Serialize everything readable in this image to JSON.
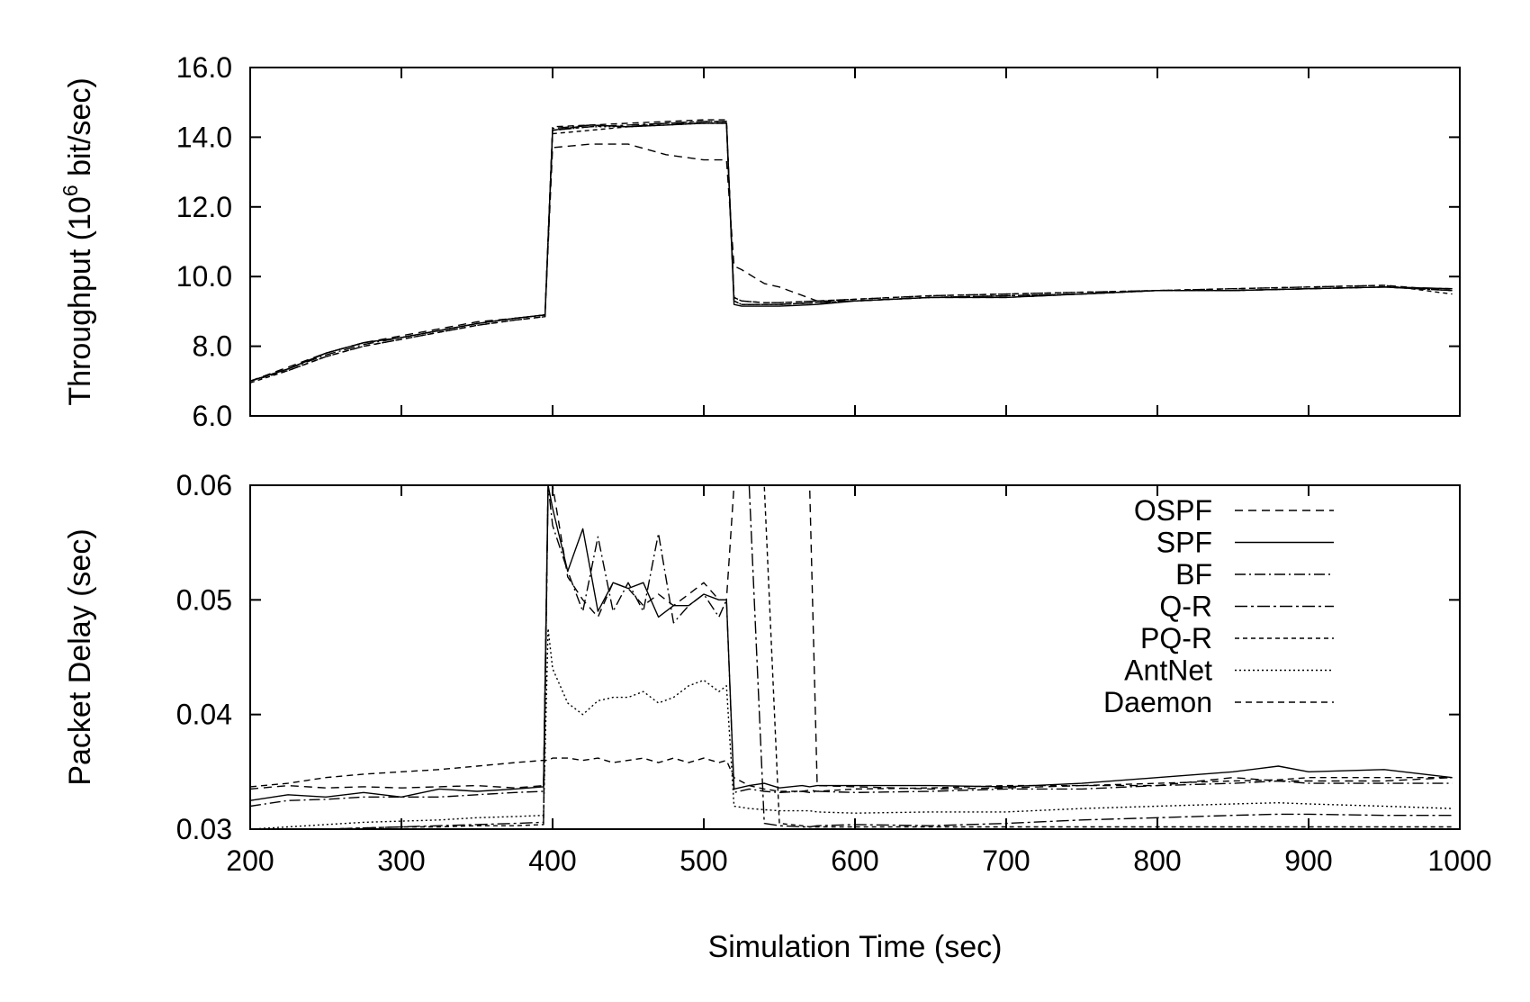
{
  "chart_data": [
    {
      "type": "line",
      "panel": "top",
      "xlabel": "Simulation Time (sec)",
      "ylabel_parts": [
        "Throughput (10",
        "6",
        " bit/sec)"
      ],
      "xlim": [
        200,
        1000
      ],
      "ylim": [
        6.0,
        16.0
      ],
      "xticks": [
        200,
        300,
        400,
        500,
        600,
        700,
        800,
        900,
        1000
      ],
      "yticks": [
        6.0,
        8.0,
        10.0,
        12.0,
        14.0,
        16.0
      ],
      "ytick_labels": [
        "6.0",
        "8.0",
        "10.0",
        "12.0",
        "14.0",
        "16.0"
      ],
      "x": [
        200,
        225,
        250,
        275,
        300,
        325,
        350,
        375,
        395,
        400,
        425,
        450,
        475,
        500,
        515,
        520,
        525,
        540,
        550,
        575,
        600,
        650,
        700,
        750,
        800,
        850,
        900,
        950,
        995
      ],
      "series": [
        {
          "name": "OSPF",
          "values": [
            7.0,
            7.4,
            7.8,
            8.1,
            8.3,
            8.5,
            8.7,
            8.8,
            8.9,
            13.7,
            13.8,
            13.8,
            13.5,
            13.35,
            13.35,
            10.3,
            10.2,
            9.8,
            9.7,
            9.3,
            9.3,
            9.4,
            9.4,
            9.5,
            9.6,
            9.6,
            9.65,
            9.7,
            9.6
          ],
          "dash": "9,6"
        },
        {
          "name": "SPF",
          "values": [
            7.0,
            7.35,
            7.8,
            8.1,
            8.25,
            8.45,
            8.65,
            8.8,
            8.9,
            14.2,
            14.35,
            14.3,
            14.35,
            14.4,
            14.4,
            9.2,
            9.15,
            9.15,
            9.15,
            9.2,
            9.3,
            9.4,
            9.4,
            9.5,
            9.6,
            9.6,
            9.65,
            9.7,
            9.65
          ],
          "dash": ""
        },
        {
          "name": "BF",
          "values": [
            7.0,
            7.35,
            7.75,
            8.05,
            8.25,
            8.45,
            8.65,
            8.8,
            8.9,
            14.25,
            14.35,
            14.3,
            14.4,
            14.45,
            14.45,
            9.3,
            9.2,
            9.2,
            9.2,
            9.25,
            9.3,
            9.4,
            9.45,
            9.5,
            9.6,
            9.6,
            9.65,
            9.7,
            9.6
          ],
          "dash": "12,4,2,4"
        },
        {
          "name": "Q-R",
          "values": [
            7.0,
            7.35,
            7.8,
            8.1,
            8.25,
            8.45,
            8.65,
            8.8,
            8.9,
            14.2,
            14.3,
            14.35,
            14.4,
            14.4,
            14.4,
            9.3,
            9.2,
            9.2,
            9.2,
            9.25,
            9.3,
            9.4,
            9.45,
            9.5,
            9.6,
            9.6,
            9.65,
            9.7,
            9.65
          ],
          "dash": "14,4,3,4"
        },
        {
          "name": "PQ-R",
          "values": [
            6.95,
            7.3,
            7.7,
            8.0,
            8.2,
            8.4,
            8.6,
            8.75,
            8.85,
            14.1,
            14.2,
            14.3,
            14.4,
            14.45,
            14.45,
            9.4,
            9.3,
            9.25,
            9.25,
            9.3,
            9.35,
            9.45,
            9.5,
            9.55,
            9.6,
            9.65,
            9.7,
            9.75,
            9.5
          ],
          "dash": "5,4"
        },
        {
          "name": "AntNet",
          "values": [
            7.0,
            7.35,
            7.8,
            8.1,
            8.25,
            8.45,
            8.65,
            8.8,
            8.9,
            14.2,
            14.3,
            14.3,
            14.35,
            14.4,
            14.4,
            9.3,
            9.2,
            9.2,
            9.2,
            9.25,
            9.3,
            9.4,
            9.45,
            9.5,
            9.6,
            9.6,
            9.65,
            9.7,
            9.6
          ],
          "dash": "2,3"
        },
        {
          "name": "Daemon",
          "values": [
            7.0,
            7.3,
            7.7,
            8.0,
            8.2,
            8.4,
            8.6,
            8.75,
            8.85,
            14.3,
            14.35,
            14.4,
            14.45,
            14.5,
            14.5,
            9.4,
            9.3,
            9.25,
            9.25,
            9.3,
            9.35,
            9.45,
            9.5,
            9.55,
            9.6,
            9.65,
            9.7,
            9.75,
            9.6
          ],
          "dash": "7,5"
        }
      ]
    },
    {
      "type": "line",
      "panel": "bottom",
      "xlabel": "Simulation Time (sec)",
      "ylabel": "Packet Delay (sec)",
      "xlim": [
        200,
        1000
      ],
      "ylim": [
        0.03,
        0.06
      ],
      "xticks": [
        200,
        300,
        400,
        500,
        600,
        700,
        800,
        900,
        1000
      ],
      "xtick_labels": [
        "200",
        "300",
        "400",
        "500",
        "600",
        "700",
        "800",
        "900",
        "1000"
      ],
      "yticks": [
        0.03,
        0.04,
        0.05,
        0.06
      ],
      "ytick_labels": [
        "0.03",
        "0.04",
        "0.05",
        "0.06"
      ],
      "legend": "top-right",
      "x": [
        200,
        225,
        250,
        275,
        300,
        325,
        350,
        375,
        394,
        397,
        400,
        410,
        420,
        430,
        440,
        450,
        460,
        470,
        480,
        490,
        500,
        510,
        515,
        520,
        530,
        540,
        550,
        565,
        570,
        575,
        600,
        650,
        700,
        750,
        800,
        850,
        880,
        900,
        950,
        995
      ],
      "series": [
        {
          "name": "OSPF",
          "values": [
            0.0335,
            0.0338,
            0.0336,
            0.0337,
            0.0336,
            0.0337,
            0.0338,
            0.0336,
            0.0338,
            0.06,
            0.06,
            0.052,
            0.05,
            0.0485,
            0.0515,
            0.051,
            0.0495,
            0.0505,
            0.0495,
            0.0505,
            0.0515,
            0.05,
            0.05,
            0.06,
            0.06,
            0.06,
            0.06,
            0.06,
            0.06,
            0.0338,
            0.0337,
            0.0335,
            0.0336,
            0.0338,
            0.0338,
            0.0345,
            0.0342,
            0.0342,
            0.0342,
            0.0345
          ],
          "dash": "9,6"
        },
        {
          "name": "SPF",
          "values": [
            0.0325,
            0.033,
            0.0328,
            0.0332,
            0.0328,
            0.0335,
            0.0333,
            0.0335,
            0.0337,
            0.06,
            0.058,
            0.0525,
            0.0562,
            0.049,
            0.0515,
            0.051,
            0.0515,
            0.0485,
            0.0495,
            0.0495,
            0.0505,
            0.05,
            0.05,
            0.0335,
            0.0338,
            0.034,
            0.0336,
            0.0338,
            0.0337,
            0.0338,
            0.0338,
            0.0338,
            0.0337,
            0.034,
            0.0345,
            0.035,
            0.0355,
            0.035,
            0.0352,
            0.0345
          ],
          "dash": ""
        },
        {
          "name": "BF",
          "values": [
            0.032,
            0.0325,
            0.0326,
            0.0328,
            0.0328,
            0.0328,
            0.033,
            0.0332,
            0.0333,
            0.06,
            0.0565,
            0.0525,
            0.049,
            0.0555,
            0.049,
            0.0515,
            0.049,
            0.0558,
            0.048,
            0.0495,
            0.0505,
            0.0485,
            0.05,
            0.0332,
            0.0335,
            0.0333,
            0.0332,
            0.0333,
            0.0332,
            0.0333,
            0.0332,
            0.0333,
            0.0335,
            0.0335,
            0.0338,
            0.034,
            0.0342,
            0.034,
            0.034,
            0.034
          ],
          "dash": "12,4,2,4"
        },
        {
          "name": "Q-R",
          "values": [
            0.0295,
            0.0298,
            0.03,
            0.0301,
            0.0302,
            0.0303,
            0.0304,
            0.0305,
            0.0306,
            0.06,
            0.06,
            0.06,
            0.06,
            0.06,
            0.06,
            0.06,
            0.06,
            0.06,
            0.06,
            0.06,
            0.06,
            0.06,
            0.06,
            0.06,
            0.06,
            0.0305,
            0.0303,
            0.0302,
            0.0302,
            0.0303,
            0.0304,
            0.0303,
            0.0305,
            0.0308,
            0.031,
            0.0312,
            0.0313,
            0.0313,
            0.0312,
            0.0312
          ],
          "dash": "14,4,3,4"
        },
        {
          "name": "PQ-R",
          "values": [
            0.0298,
            0.0299,
            0.03,
            0.0301,
            0.0302,
            0.0302,
            0.0303,
            0.0303,
            0.0304,
            0.06,
            0.06,
            0.06,
            0.06,
            0.06,
            0.06,
            0.06,
            0.06,
            0.06,
            0.06,
            0.06,
            0.06,
            0.06,
            0.06,
            0.06,
            0.06,
            0.06,
            0.0305,
            0.0303,
            0.0302,
            0.0302,
            0.0302,
            0.0302,
            0.0302,
            0.0302,
            0.0302,
            0.0302,
            0.0302,
            0.0302,
            0.0302,
            0.0302
          ],
          "dash": "5,4"
        },
        {
          "name": "AntNet",
          "values": [
            0.03,
            0.0302,
            0.0304,
            0.0306,
            0.0307,
            0.0308,
            0.031,
            0.0311,
            0.0312,
            0.0475,
            0.044,
            0.041,
            0.04,
            0.0412,
            0.0415,
            0.0415,
            0.042,
            0.041,
            0.0415,
            0.0425,
            0.043,
            0.042,
            0.0425,
            0.032,
            0.0318,
            0.0317,
            0.0316,
            0.0316,
            0.0316,
            0.0315,
            0.0314,
            0.0315,
            0.0315,
            0.0318,
            0.032,
            0.0322,
            0.0323,
            0.0322,
            0.032,
            0.0318
          ],
          "dash": "2,3"
        },
        {
          "name": "Daemon",
          "values": [
            0.0337,
            0.034,
            0.0345,
            0.0348,
            0.035,
            0.0352,
            0.0355,
            0.0358,
            0.036,
            0.036,
            0.0362,
            0.0362,
            0.036,
            0.0362,
            0.0358,
            0.036,
            0.0362,
            0.0358,
            0.0362,
            0.0358,
            0.0362,
            0.0358,
            0.036,
            0.0345,
            0.0338,
            0.0335,
            0.0333,
            0.0333,
            0.0334,
            0.0333,
            0.0335,
            0.0336,
            0.0338,
            0.0338,
            0.034,
            0.0342,
            0.0343,
            0.0345,
            0.0345,
            0.0345
          ],
          "dash": "7,5"
        }
      ]
    }
  ]
}
